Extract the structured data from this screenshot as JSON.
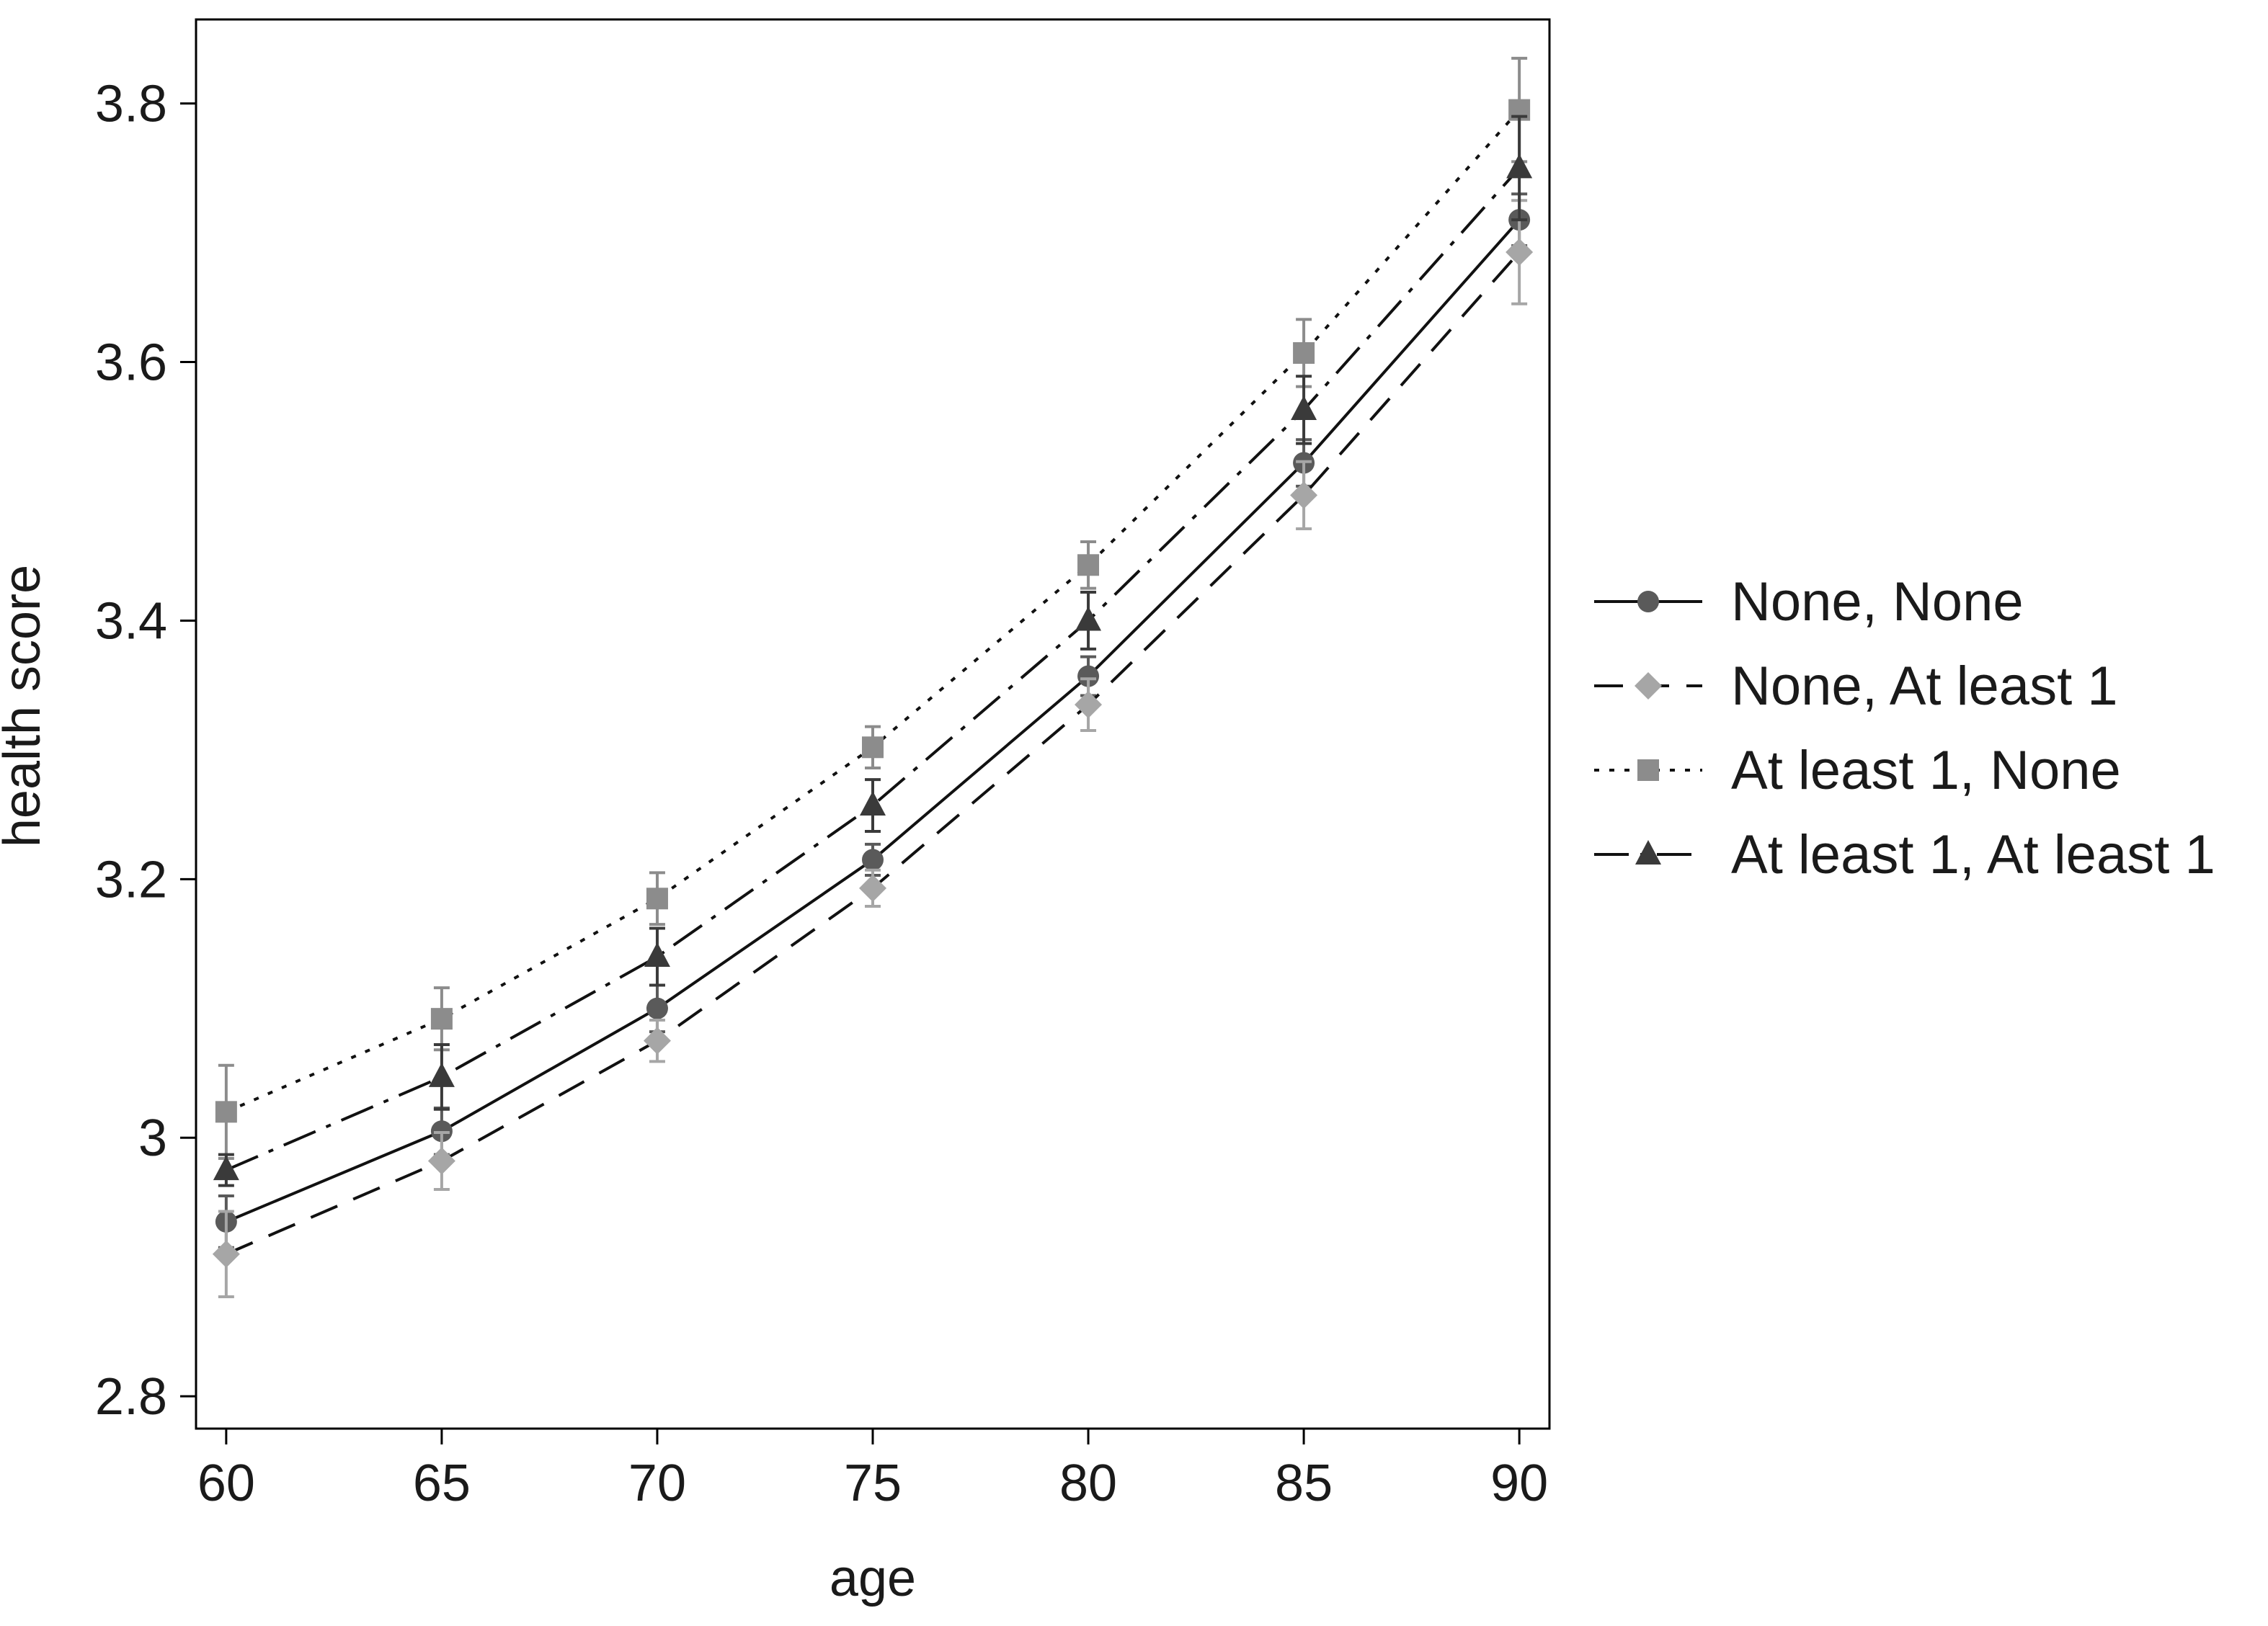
{
  "chart_data": {
    "type": "line",
    "title": "",
    "xlabel": "age",
    "ylabel": "health score",
    "x": [
      60,
      65,
      70,
      75,
      80,
      85,
      90
    ],
    "xticks": [
      "60",
      "65",
      "70",
      "75",
      "80",
      "85",
      "90"
    ],
    "yticks": [
      "2.8",
      "3",
      "3.2",
      "3.4",
      "3.6",
      "3.8"
    ],
    "xlim": [
      59.3,
      90.7
    ],
    "ylim": [
      2.775,
      3.865
    ],
    "grid": false,
    "legend_position": "right",
    "series": [
      {
        "name": "None, None",
        "marker": "circle",
        "line": "solid",
        "color": "#5a5a5a",
        "values": [
          2.935,
          3.005,
          3.1,
          3.215,
          3.357,
          3.522,
          3.71
        ],
        "err": [
          0.02,
          0.018,
          0.018,
          0.012,
          0.015,
          0.018,
          0.02
        ]
      },
      {
        "name": "None, At least 1",
        "marker": "diamond",
        "line": "dashed",
        "color": "#a6a6a6",
        "values": [
          2.91,
          2.982,
          3.075,
          3.193,
          3.335,
          3.497,
          3.685
        ],
        "err": [
          0.033,
          0.022,
          0.016,
          0.014,
          0.02,
          0.026,
          0.04
        ]
      },
      {
        "name": "At least 1, None",
        "marker": "square",
        "line": "dotted",
        "color": "#8c8c8c",
        "values": [
          3.02,
          3.092,
          3.185,
          3.302,
          3.443,
          3.607,
          3.795
        ],
        "err": [
          0.036,
          0.024,
          0.02,
          0.016,
          0.018,
          0.026,
          0.04
        ]
      },
      {
        "name": "At least 1, At least 1",
        "marker": "triangle",
        "line": "dash-dot",
        "color": "#3a3a3a",
        "values": [
          2.975,
          3.047,
          3.14,
          3.257,
          3.4,
          3.563,
          3.75
        ],
        "err": [
          0.012,
          0.025,
          0.022,
          0.02,
          0.022,
          0.026,
          0.04
        ]
      }
    ]
  }
}
